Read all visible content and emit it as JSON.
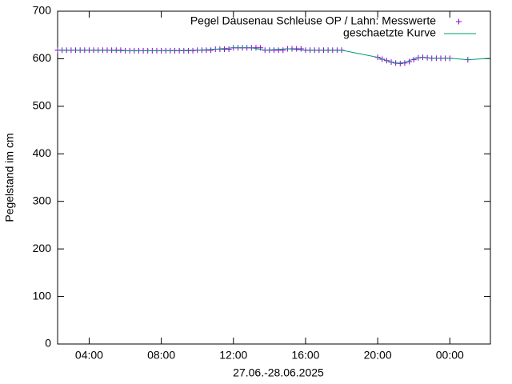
{
  "chart_data": {
    "type": "scatter",
    "xlabel": "27.06.-28.06.2025",
    "ylabel": "Pegelstand im cm",
    "xlim": [
      2.25,
      26.25
    ],
    "xticks": [
      {
        "value": 4,
        "label": "04:00"
      },
      {
        "value": 8,
        "label": "08:00"
      },
      {
        "value": 12,
        "label": "12:00"
      },
      {
        "value": 16,
        "label": "16:00"
      },
      {
        "value": 20,
        "label": "20:00"
      },
      {
        "value": 24,
        "label": "00:00"
      }
    ],
    "ylim": [
      0,
      700
    ],
    "yticks": [
      0,
      100,
      200,
      300,
      400,
      500,
      600,
      700
    ],
    "legend": "top-right",
    "series": [
      {
        "name": "Pegel Dausenau Schleuse OP / Lahn: Messwerte",
        "color": "#9400d3",
        "marker": "plus",
        "x": [
          2.25,
          2.5,
          2.75,
          3,
          3.25,
          3.5,
          3.75,
          4,
          4.25,
          4.5,
          4.75,
          5,
          5.25,
          5.5,
          5.75,
          6,
          6.25,
          6.5,
          6.75,
          7,
          7.25,
          7.5,
          7.75,
          8,
          8.25,
          8.5,
          8.75,
          9,
          9.25,
          9.5,
          9.75,
          10,
          10.25,
          10.5,
          10.75,
          11,
          11.25,
          11.5,
          11.75,
          12,
          12.25,
          12.5,
          12.75,
          13,
          13.25,
          13.5,
          13.75,
          14,
          14.25,
          14.5,
          14.75,
          15,
          15.25,
          15.5,
          15.75,
          16,
          16.25,
          16.5,
          16.75,
          17,
          17.25,
          17.5,
          17.75,
          18,
          20,
          20.25,
          20.5,
          20.75,
          21,
          21.25,
          21.5,
          21.75,
          22,
          22.25,
          22.5,
          22.75,
          23,
          23.25,
          23.5,
          23.75,
          24,
          25
        ],
        "values": [
          618,
          618,
          618,
          618,
          618,
          618,
          618,
          618,
          618,
          618,
          618,
          618,
          618,
          618,
          618,
          617,
          617,
          617,
          617,
          617,
          617,
          617,
          617,
          617,
          617,
          617,
          617,
          617,
          617,
          617,
          617,
          618,
          618,
          618,
          618,
          620,
          620,
          620,
          620,
          623,
          623,
          623,
          623,
          623,
          623,
          623,
          618,
          618,
          618,
          618,
          618,
          621,
          621,
          621,
          621,
          618,
          618,
          618,
          618,
          618,
          618,
          618,
          618,
          618,
          603,
          599,
          596,
          593,
          591,
          590,
          591,
          594,
          598,
          602,
          603,
          602,
          601,
          601,
          601,
          601,
          601,
          598
        ]
      },
      {
        "name": "geschaetzte Kurve",
        "color": "#009e73",
        "marker": "line",
        "x": [
          2.25,
          4,
          6,
          8,
          10,
          11,
          12,
          13,
          13.75,
          15,
          16,
          18,
          20,
          20.5,
          21,
          21.5,
          22,
          22.5,
          23,
          24,
          25,
          26.25
        ],
        "values": [
          618,
          618,
          617,
          617,
          618,
          620,
          623,
          623,
          618,
          621,
          618,
          618,
          603,
          596,
          590,
          592,
          600,
          603,
          601,
          601,
          598,
          601
        ]
      }
    ]
  }
}
